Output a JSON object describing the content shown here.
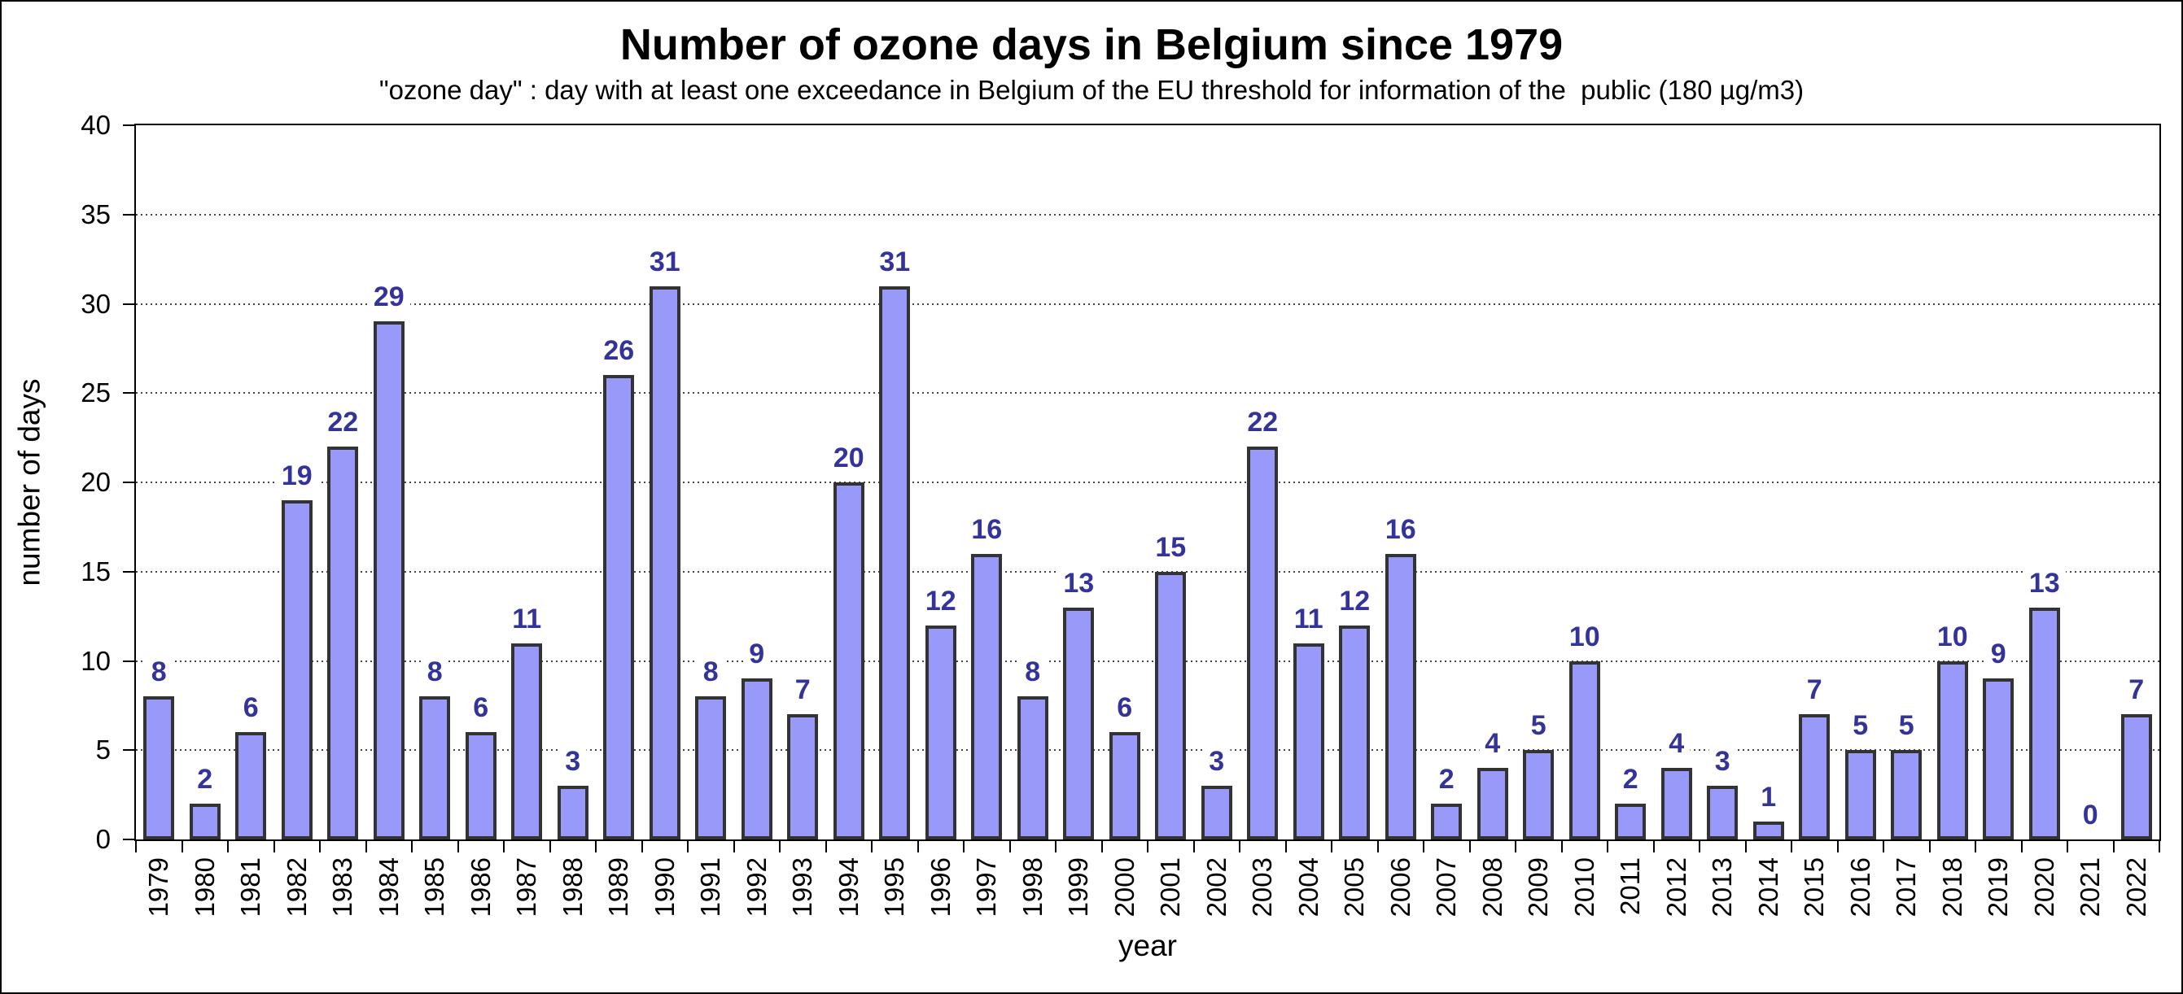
{
  "chart_data": {
    "type": "bar",
    "title": "Number of ozone days in Belgium since 1979",
    "subtitle": "\"ozone day\" : day with at least one exceedance in Belgium of the EU threshold for information of the  public (180 µg/m3)",
    "xlabel": "year",
    "ylabel": "number of days",
    "ylim": [
      0,
      40
    ],
    "yticks": [
      0,
      5,
      10,
      15,
      20,
      25,
      30,
      35,
      40
    ],
    "grid": {
      "horizontal": true,
      "style": "dotted",
      "interval": 5
    },
    "legend": "none",
    "categories": [
      "1979",
      "1980",
      "1981",
      "1982",
      "1983",
      "1984",
      "1985",
      "1986",
      "1987",
      "1988",
      "1989",
      "1990",
      "1991",
      "1992",
      "1993",
      "1994",
      "1995",
      "1996",
      "1997",
      "1998",
      "1999",
      "2000",
      "2001",
      "2002",
      "2003",
      "2004",
      "2005",
      "2006",
      "2007",
      "2008",
      "2009",
      "2010",
      "2011",
      "2012",
      "2013",
      "2014",
      "2015",
      "2016",
      "2017",
      "2018",
      "2019",
      "2020",
      "2021",
      "2022"
    ],
    "values": [
      8,
      2,
      6,
      19,
      22,
      29,
      8,
      6,
      11,
      3,
      26,
      31,
      8,
      9,
      7,
      20,
      31,
      12,
      16,
      8,
      13,
      6,
      15,
      3,
      22,
      11,
      12,
      16,
      2,
      4,
      5,
      10,
      2,
      4,
      3,
      1,
      7,
      5,
      5,
      10,
      9,
      13,
      0,
      7
    ],
    "value_labels_shown": true,
    "colors": {
      "bar_fill": "#9999FA",
      "bar_border": "#333333",
      "value_label": "#333399",
      "axis": "#000000",
      "gridline": "#444444",
      "background": "#FFFFFF"
    }
  }
}
